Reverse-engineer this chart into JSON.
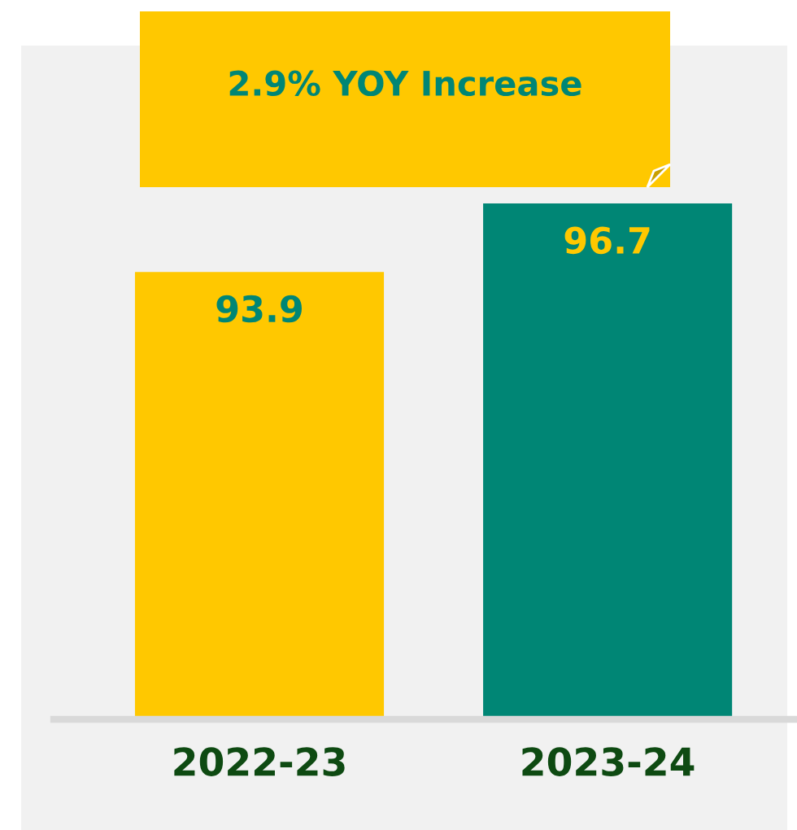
{
  "chart_data": {
    "type": "bar",
    "categories": [
      "2022-23",
      "2023-24"
    ],
    "values": [
      93.9,
      96.7
    ],
    "colors": [
      "#ffc800",
      "#008675"
    ],
    "data_labels": true,
    "ylim": [
      75.6,
      96.7
    ],
    "tick_labels": "x",
    "grid": false,
    "annotations": [
      "2.9% YOY Increase"
    ]
  }
}
